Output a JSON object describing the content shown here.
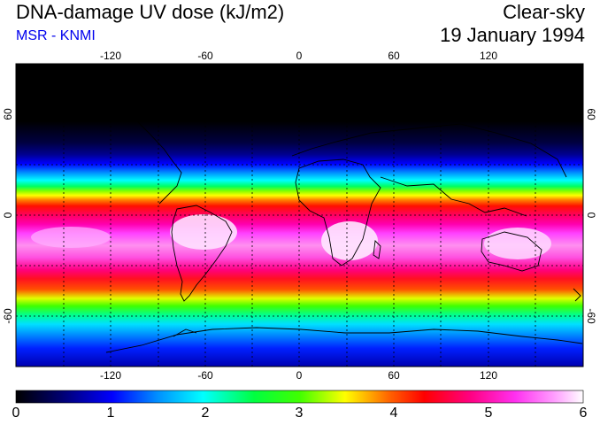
{
  "header": {
    "title": "DNA-damage UV dose (kJ/m2)",
    "source": "MSR - KNMI",
    "condition": "Clear-sky",
    "date": "19 January 1994"
  },
  "map": {
    "longitude_ticks": [
      "-120",
      "-60",
      "0",
      "60",
      "120"
    ],
    "latitude_ticks": [
      "60",
      "0",
      "-60"
    ],
    "longitude_range": [
      -180,
      180
    ],
    "latitude_range": [
      -90,
      90
    ]
  },
  "colorbar": {
    "tick_labels": [
      "0",
      "1",
      "2",
      "3",
      "4",
      "5",
      "6"
    ],
    "range": [
      0,
      6
    ],
    "colors": [
      "#000000",
      "#000060",
      "#0000ff",
      "#00a0ff",
      "#00ffff",
      "#00ff80",
      "#00ff00",
      "#a0ff00",
      "#ffff00",
      "#ffa000",
      "#ff4000",
      "#ff0000",
      "#ff0080",
      "#ff00c0",
      "#ff40ff",
      "#ffa0ff",
      "#ffffff"
    ]
  }
}
